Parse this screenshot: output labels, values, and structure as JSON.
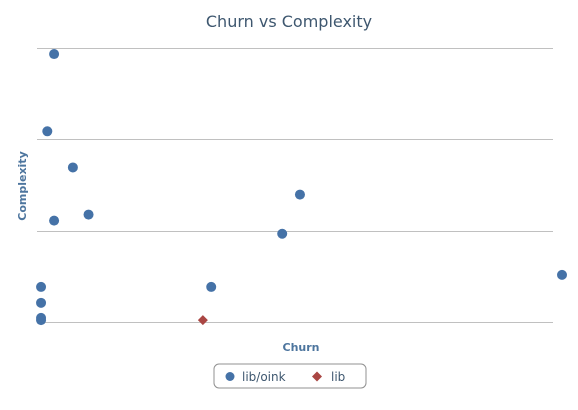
{
  "chart_data": {
    "type": "scatter",
    "title": "Churn vs Complexity",
    "xlabel": "Churn",
    "ylabel": "Complexity",
    "xlim": [
      0,
      100
    ],
    "ylim": [
      0,
      100
    ],
    "grid": "horizontal",
    "tick_labels_shown": false,
    "legend_position": "bottom-center",
    "series": [
      {
        "name": "lib/oink",
        "marker": "circle",
        "color": "#4572a7",
        "points": [
          {
            "x": 2.7,
            "y": 97.8
          },
          {
            "x": 1.4,
            "y": 69.6
          },
          {
            "x": 6.3,
            "y": 56.4
          },
          {
            "x": 2.7,
            "y": 37.0
          },
          {
            "x": 9.3,
            "y": 39.2
          },
          {
            "x": 49.8,
            "y": 46.5
          },
          {
            "x": 46.4,
            "y": 32.2
          },
          {
            "x": 0.2,
            "y": 12.8
          },
          {
            "x": 0.2,
            "y": 7.0
          },
          {
            "x": 0.2,
            "y": 1.5
          },
          {
            "x": 0.2,
            "y": 0.7
          },
          {
            "x": 32.8,
            "y": 12.8
          },
          {
            "x": 100.0,
            "y": 17.2
          }
        ]
      },
      {
        "name": "lib",
        "marker": "diamond",
        "color": "#aa4643",
        "points": [
          {
            "x": 31.2,
            "y": 0.7
          }
        ]
      }
    ]
  }
}
